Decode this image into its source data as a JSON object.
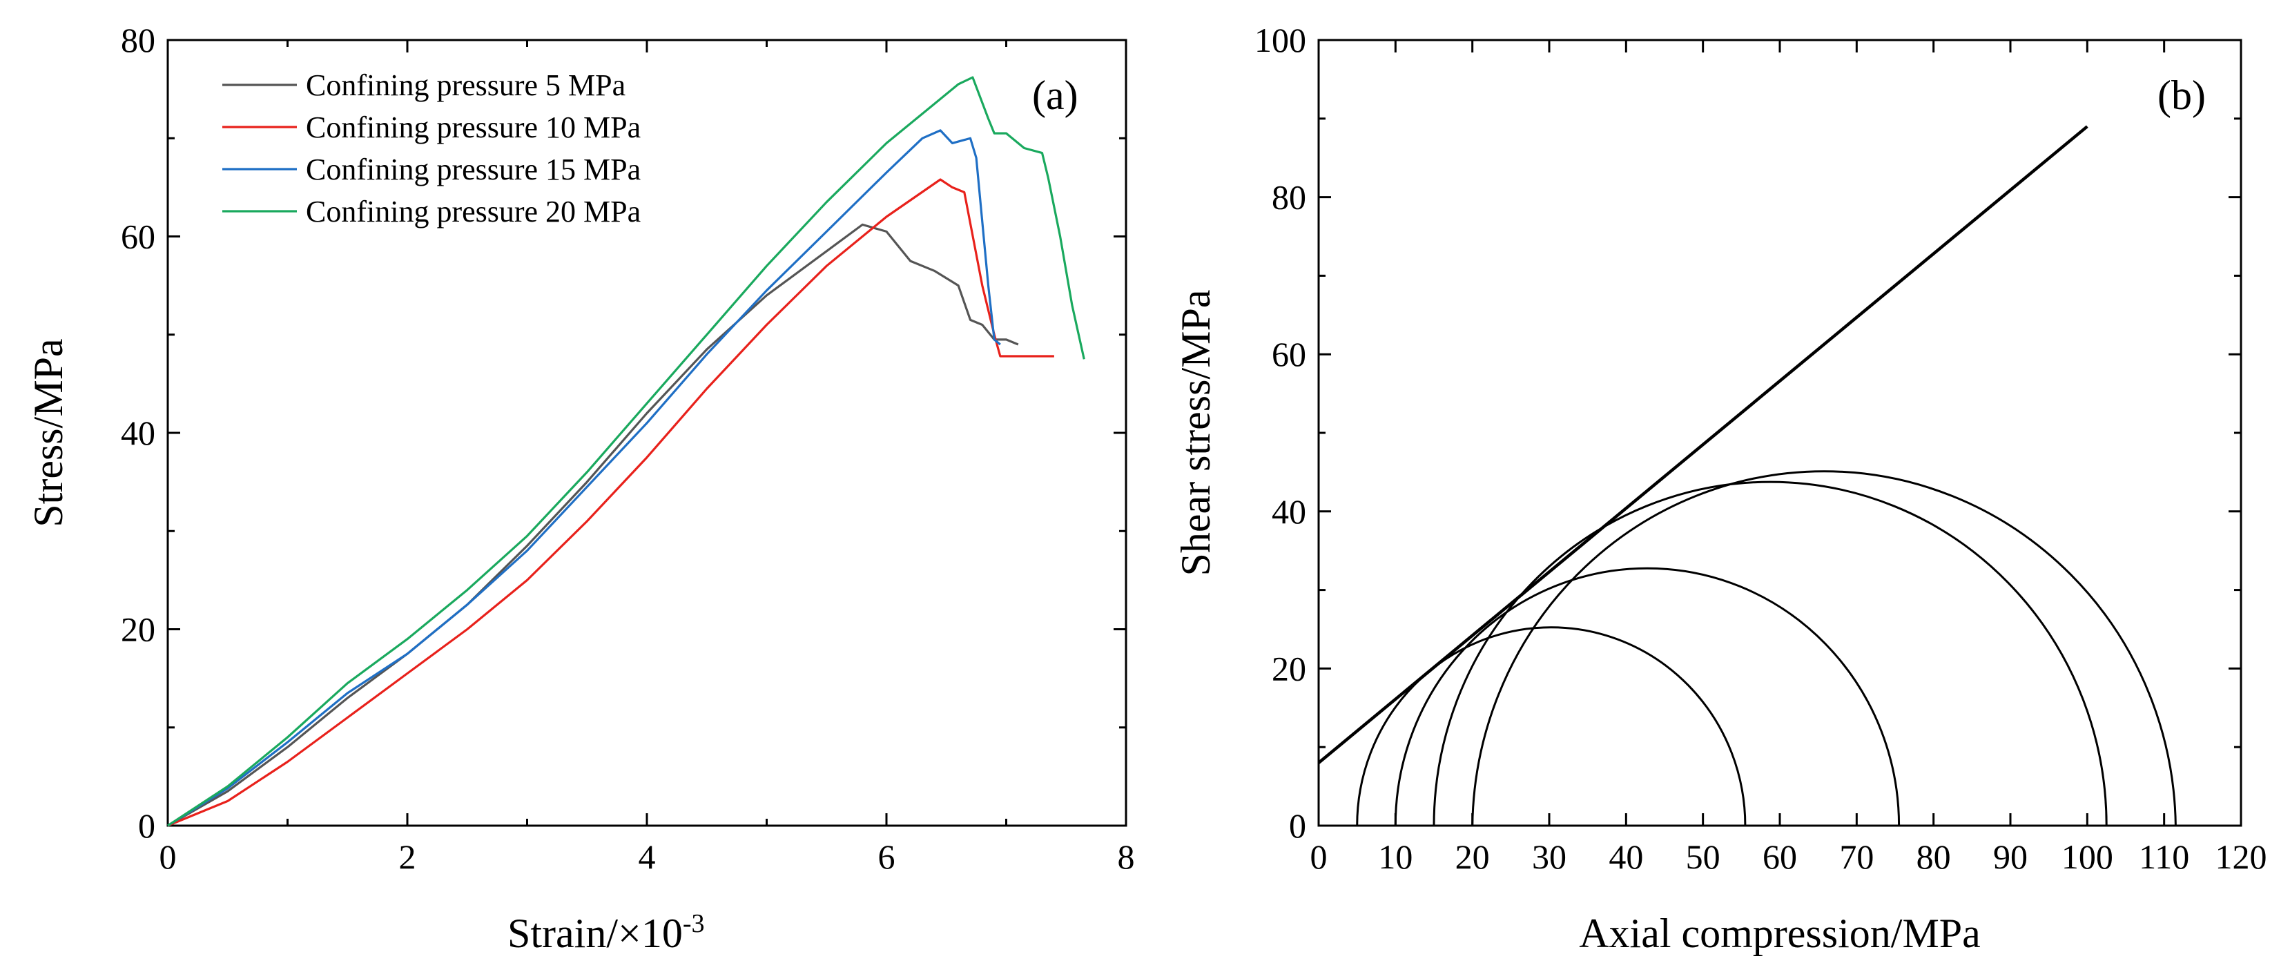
{
  "chart_data": [
    {
      "type": "line",
      "panel_label": "(a)",
      "xlabel": "Strain/×10",
      "xlabel_exponent": "-3",
      "ylabel": "Stress/MPa",
      "xlim": [
        0,
        8
      ],
      "ylim": [
        0,
        80
      ],
      "xticks": [
        0,
        2,
        4,
        6,
        8
      ],
      "yticks": [
        0,
        20,
        40,
        60,
        80
      ],
      "grid": false,
      "legend_position": "top-left",
      "series": [
        {
          "name": "Confining pressure 5 MPa",
          "color": "#555555",
          "points": [
            [
              0,
              0
            ],
            [
              0.5,
              3.5
            ],
            [
              1,
              8
            ],
            [
              1.5,
              13
            ],
            [
              2,
              17.5
            ],
            [
              2.5,
              22.5
            ],
            [
              3,
              28.5
            ],
            [
              3.5,
              35
            ],
            [
              4,
              42
            ],
            [
              4.5,
              48.5
            ],
            [
              5,
              54
            ],
            [
              5.5,
              58.5
            ],
            [
              5.8,
              61.2
            ],
            [
              6.0,
              60.5
            ],
            [
              6.2,
              57.5
            ],
            [
              6.4,
              56.5
            ],
            [
              6.6,
              55
            ],
            [
              6.7,
              51.5
            ],
            [
              6.8,
              51
            ],
            [
              6.9,
              49.5
            ],
            [
              7.0,
              49.5
            ],
            [
              7.1,
              49
            ]
          ]
        },
        {
          "name": "Confining pressure 10 MPa",
          "color": "#e8211b",
          "points": [
            [
              0,
              0
            ],
            [
              0.5,
              2.5
            ],
            [
              1,
              6.5
            ],
            [
              1.5,
              11
            ],
            [
              2,
              15.5
            ],
            [
              2.5,
              20
            ],
            [
              3,
              25
            ],
            [
              3.5,
              31
            ],
            [
              4,
              37.5
            ],
            [
              4.5,
              44.5
            ],
            [
              5,
              51
            ],
            [
              5.5,
              57
            ],
            [
              6,
              62
            ],
            [
              6.45,
              65.8
            ],
            [
              6.55,
              65
            ],
            [
              6.65,
              64.5
            ],
            [
              6.8,
              55
            ],
            [
              6.9,
              50
            ],
            [
              6.95,
              47.8
            ],
            [
              7.4,
              47.8
            ]
          ]
        },
        {
          "name": "Confining pressure 15 MPa",
          "color": "#1f6fc5",
          "points": [
            [
              0,
              0
            ],
            [
              0.5,
              3.8
            ],
            [
              1,
              8.5
            ],
            [
              1.5,
              13.5
            ],
            [
              2,
              17.5
            ],
            [
              2.5,
              22.5
            ],
            [
              3,
              28
            ],
            [
              3.5,
              34.5
            ],
            [
              4,
              41
            ],
            [
              4.5,
              48
            ],
            [
              5,
              54.5
            ],
            [
              5.5,
              60.5
            ],
            [
              6,
              66.5
            ],
            [
              6.3,
              70
            ],
            [
              6.45,
              70.8
            ],
            [
              6.55,
              69.5
            ],
            [
              6.7,
              70
            ],
            [
              6.75,
              68
            ],
            [
              6.85,
              55
            ],
            [
              6.9,
              49.5
            ],
            [
              6.95,
              49
            ]
          ]
        },
        {
          "name": "Confining pressure 20 MPa",
          "color": "#1aa95e",
          "points": [
            [
              0,
              0
            ],
            [
              0.5,
              4
            ],
            [
              1,
              9
            ],
            [
              1.5,
              14.5
            ],
            [
              2,
              19
            ],
            [
              2.5,
              24
            ],
            [
              3,
              29.5
            ],
            [
              3.5,
              36
            ],
            [
              4,
              43
            ],
            [
              4.5,
              50
            ],
            [
              5,
              57
            ],
            [
              5.5,
              63.5
            ],
            [
              6,
              69.5
            ],
            [
              6.4,
              73.5
            ],
            [
              6.6,
              75.5
            ],
            [
              6.72,
              76.2
            ],
            [
              6.85,
              72
            ],
            [
              6.9,
              70.5
            ],
            [
              7.0,
              70.5
            ],
            [
              7.15,
              69
            ],
            [
              7.3,
              68.5
            ],
            [
              7.35,
              66
            ],
            [
              7.45,
              60
            ],
            [
              7.55,
              53
            ],
            [
              7.65,
              47.5
            ]
          ]
        }
      ]
    },
    {
      "type": "line",
      "panel_label": "(b)",
      "subtype": "mohr-circles",
      "xlabel": "Axial compression/MPa",
      "ylabel": "Shear stress/MPa",
      "xlim": [
        0,
        120
      ],
      "ylim": [
        0,
        100
      ],
      "xticks": [
        0,
        10,
        20,
        30,
        40,
        50,
        60,
        70,
        80,
        90,
        100,
        110,
        120
      ],
      "yticks": [
        0,
        20,
        40,
        60,
        80,
        100
      ],
      "grid": false,
      "circles": [
        {
          "sigma3": 5,
          "sigma1": 55.5
        },
        {
          "sigma3": 10,
          "sigma1": 75.5
        },
        {
          "sigma3": 15,
          "sigma1": 102.5
        },
        {
          "sigma3": 20,
          "sigma1": 111.5
        }
      ],
      "envelope": {
        "x": [
          0,
          100
        ],
        "y": [
          8,
          89
        ]
      },
      "color": "#000000"
    }
  ]
}
